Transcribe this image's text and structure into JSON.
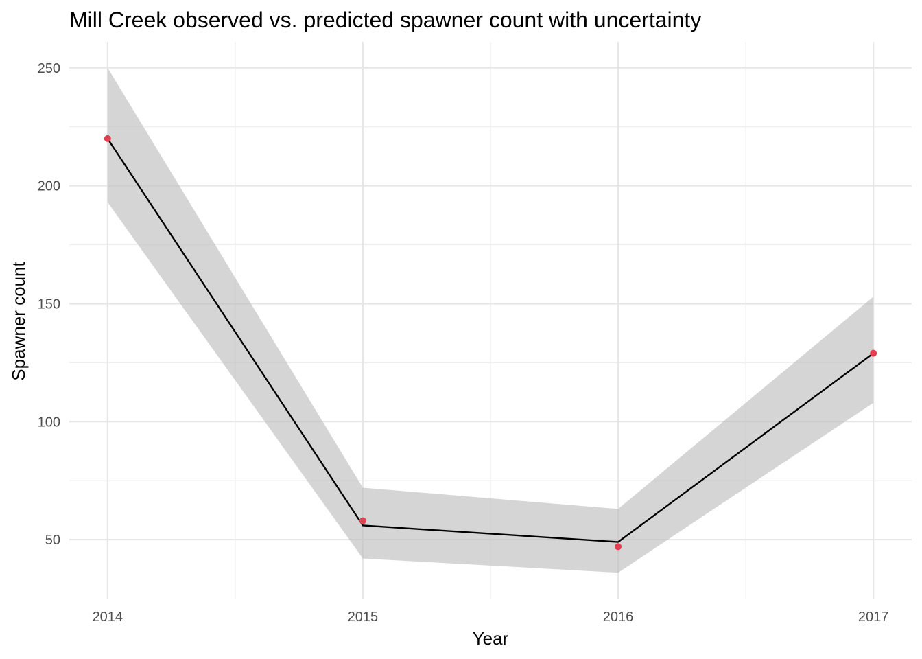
{
  "chart_data": {
    "type": "line",
    "title": "Mill Creek observed vs. predicted spawner count with uncertainty",
    "xlabel": "Year",
    "ylabel": "Spawner count",
    "x": [
      2014,
      2015,
      2016,
      2017
    ],
    "x_tick_labels": [
      "2014",
      "2015",
      "2016",
      "2017"
    ],
    "y_ticks": [
      50,
      100,
      150,
      200,
      250
    ],
    "y_tick_labels": [
      "50",
      "100",
      "150",
      "200",
      "250"
    ],
    "xlim": [
      2013.85,
      2017.15
    ],
    "ylim": [
      25,
      261
    ],
    "grid": true,
    "legend": "none",
    "series": [
      {
        "kind": "ribbon",
        "x": [
          2014,
          2015,
          2016,
          2017
        ],
        "lower": [
          193,
          42,
          36,
          108
        ],
        "upper": [
          250,
          72,
          63,
          153
        ],
        "color": "#bebebe",
        "opacity": 0.65
      },
      {
        "kind": "line",
        "x": [
          2014,
          2015,
          2016,
          2017
        ],
        "values": [
          220,
          56,
          49,
          129
        ],
        "color": "#000000"
      },
      {
        "kind": "points",
        "x": [
          2014,
          2015,
          2016,
          2017
        ],
        "values": [
          220,
          58,
          47,
          129
        ],
        "color": "#e0404f"
      }
    ]
  }
}
